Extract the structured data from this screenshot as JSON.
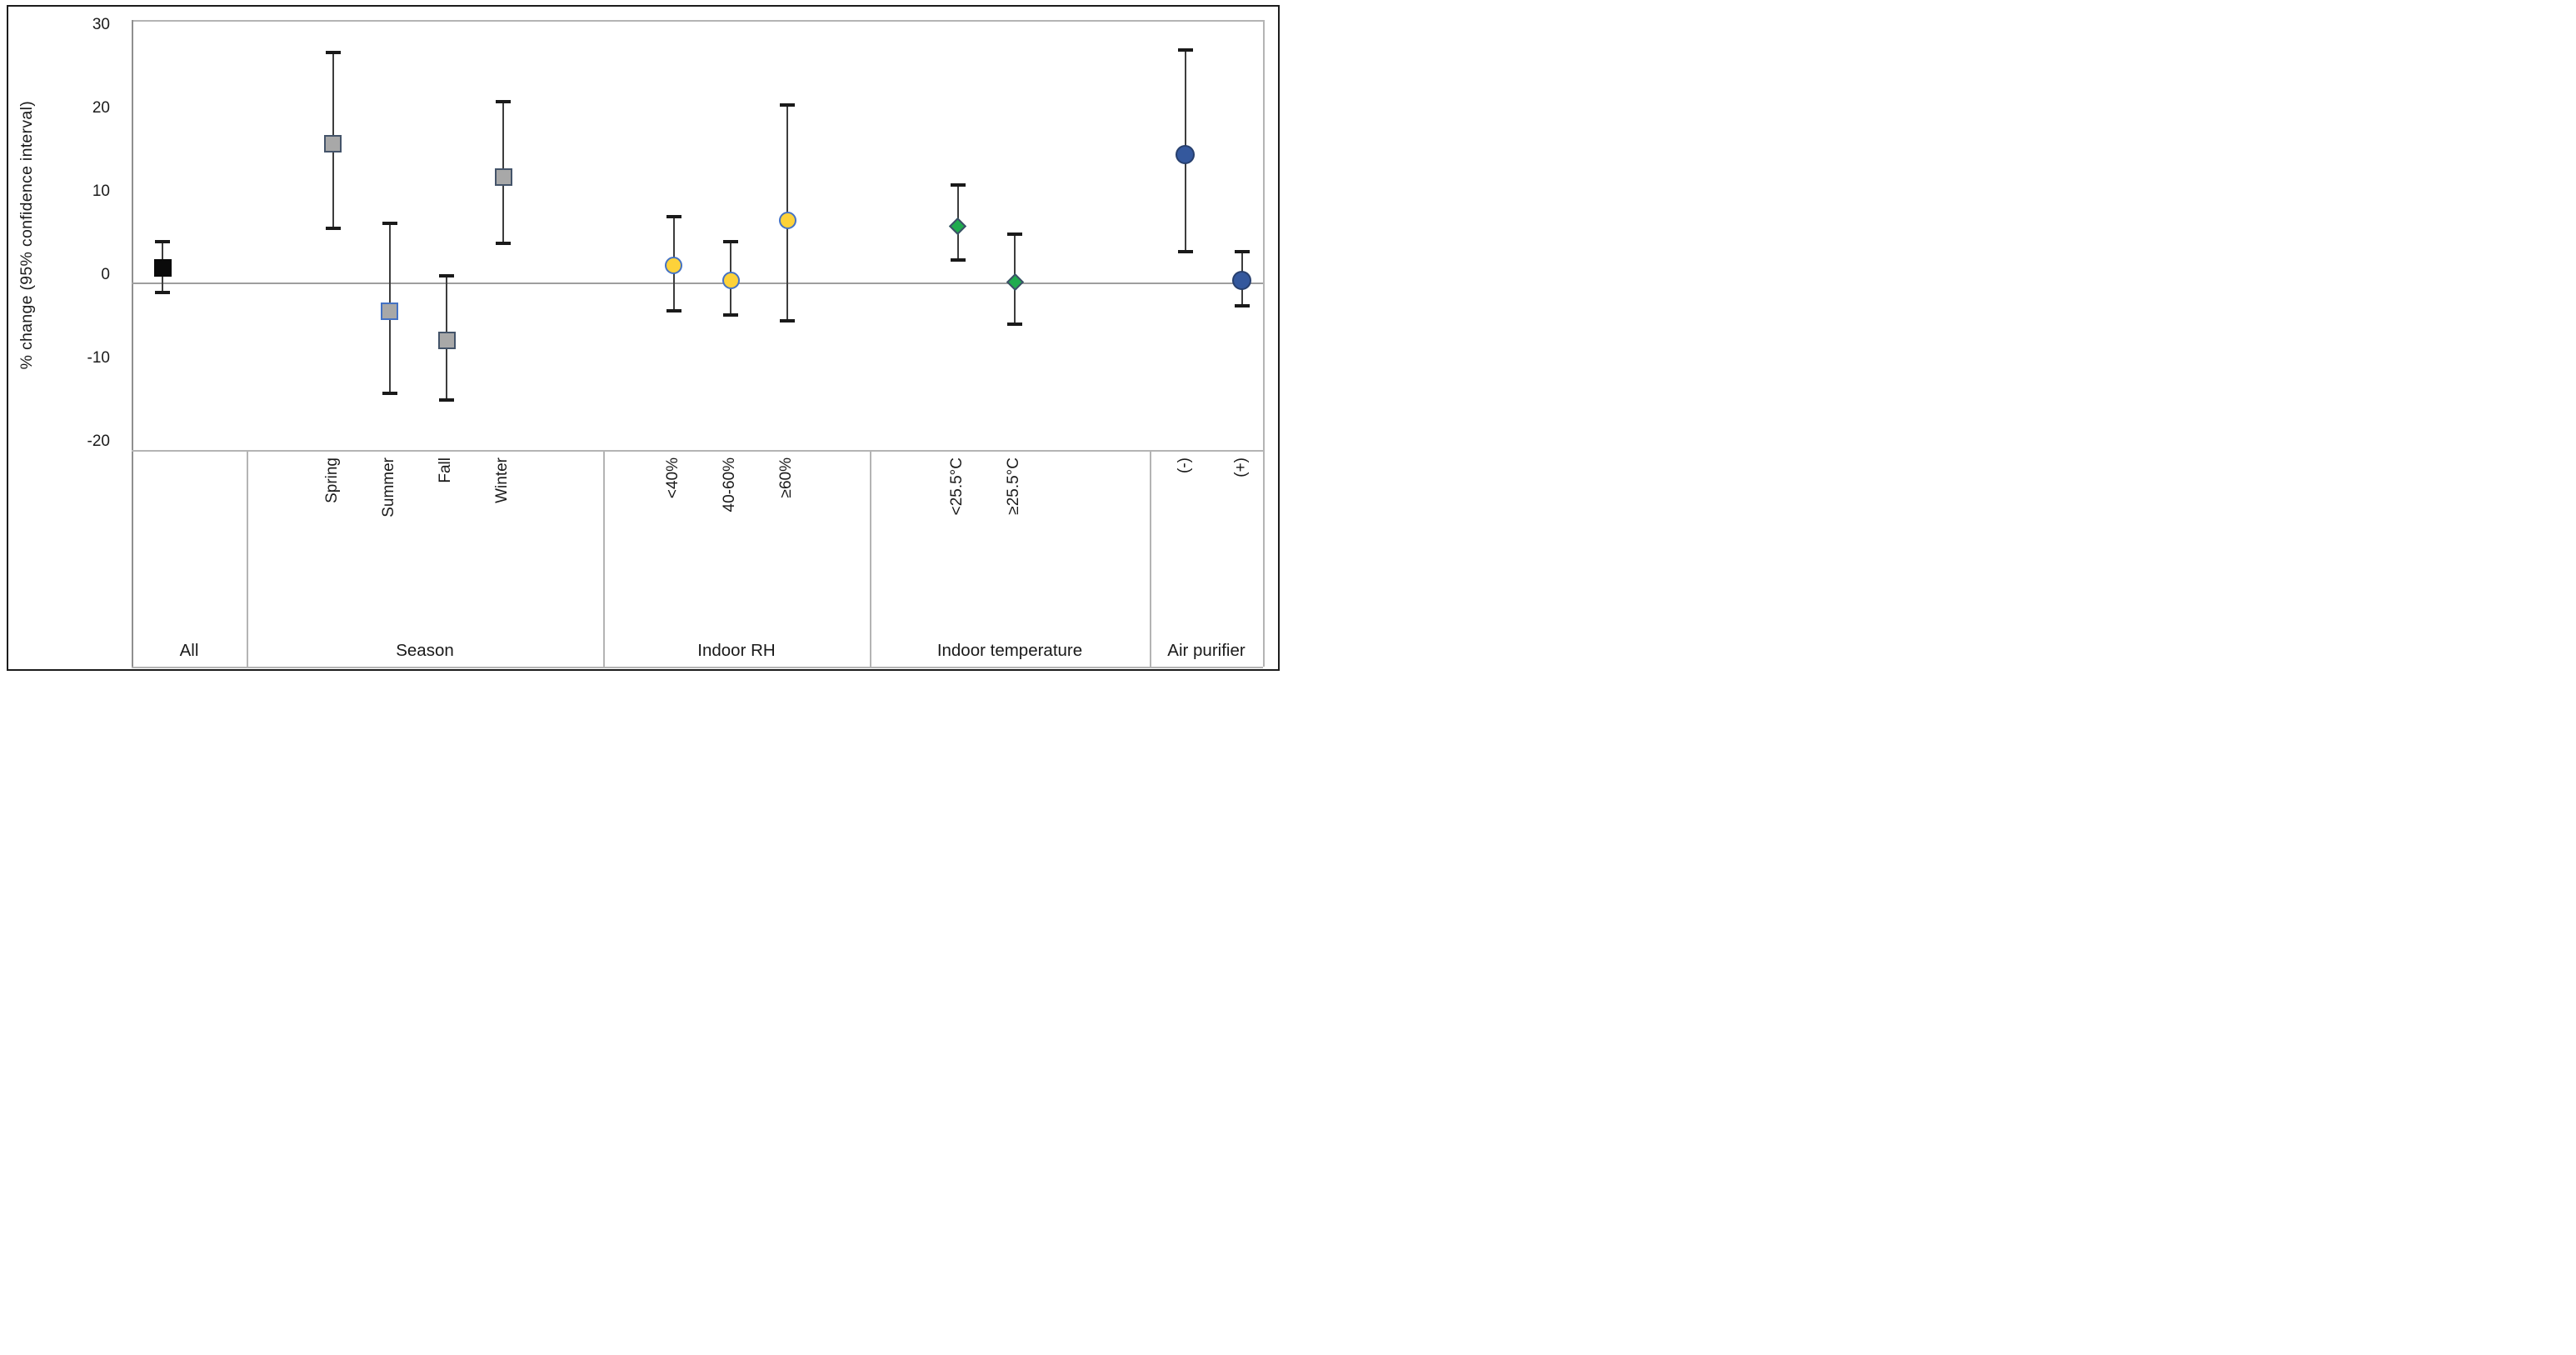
{
  "chart_data": {
    "type": "scatter",
    "title": "",
    "ylabel": "% change (95% confidence interval)",
    "xlabel": "",
    "ylim": [
      -20,
      30
    ],
    "yticks": [
      30,
      20,
      10,
      0,
      -10,
      -20
    ],
    "reference_line_y": 0,
    "grid": "off",
    "legend": "none",
    "error_bars": "95% confidence interval",
    "groups": [
      {
        "label": "All",
        "marker": "square",
        "fill": "#0a0a0a",
        "stroke": "#0a0a0a",
        "items": [
          {
            "label": "",
            "value": 1.9,
            "ci_low": -1.1,
            "ci_high": 5.0
          }
        ]
      },
      {
        "label": "Season",
        "marker": "square",
        "fill": "#a8a8a8",
        "stroke": "#44546a",
        "items": [
          {
            "label": "Spring",
            "value": 16.8,
            "ci_low": 6.6,
            "ci_high": 27.7
          },
          {
            "label": "Summer",
            "value": -3.3,
            "ci_low": -13.2,
            "ci_high": 7.2,
            "stroke": "#4472c4"
          },
          {
            "label": "Fall",
            "value": -6.8,
            "ci_low": -14.0,
            "ci_high": 0.9
          },
          {
            "label": "Winter",
            "value": 12.8,
            "ci_low": 4.8,
            "ci_high": 21.8
          }
        ]
      },
      {
        "label": "Indoor RH",
        "marker": "circle",
        "fill": "#fdd23a",
        "stroke": "#4472c4",
        "items": [
          {
            "label": "<40%",
            "value": 2.2,
            "ci_low": -3.3,
            "ci_high": 8.0
          },
          {
            "label": "40-60%",
            "value": 0.4,
            "ci_low": -3.8,
            "ci_high": 5.0
          },
          {
            "label": "≥60%",
            "value": 7.6,
            "ci_low": -4.5,
            "ci_high": 21.4
          }
        ]
      },
      {
        "label": "Indoor temperature",
        "marker": "diamond",
        "fill": "#1fab4e",
        "stroke": "#3e4f69",
        "items": [
          {
            "label": "<25.5°C",
            "value": 6.9,
            "ci_low": 2.8,
            "ci_high": 11.8
          },
          {
            "label": "≥25.5°C",
            "value": 0.2,
            "ci_low": -4.9,
            "ci_high": 5.9
          }
        ]
      },
      {
        "label": "Air purifier",
        "marker": "circle",
        "fill": "#34589d",
        "stroke": "#273f6d",
        "items": [
          {
            "label": "(-)",
            "value": 15.5,
            "ci_low": 3.8,
            "ci_high": 28.0
          },
          {
            "label": "(+)",
            "value": 0.4,
            "ci_low": -2.7,
            "ci_high": 3.8
          }
        ]
      }
    ]
  }
}
